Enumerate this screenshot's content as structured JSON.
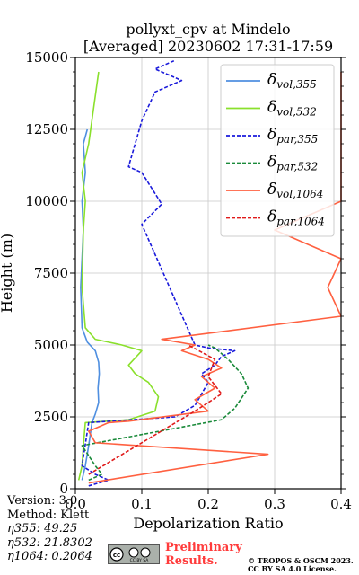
{
  "chart_data": {
    "type": "line",
    "title": "pollyxt_cpv at Mindelo",
    "subtitle": "[Averaged] 20230602 17:31-17:59",
    "xlabel": "Depolarization Ratio",
    "ylabel": "Height (m)",
    "xlim": [
      0.0,
      0.4
    ],
    "ylim": [
      0,
      15000
    ],
    "xticks": [
      "0.0",
      "0.1",
      "0.2",
      "0.3",
      "0.4"
    ],
    "yticks": [
      "0",
      "2500",
      "5000",
      "7500",
      "10000",
      "12500",
      "15000"
    ],
    "grid": true,
    "legend_position": "top-right",
    "series": [
      {
        "name": "δvol,355",
        "color": "#4f8fe0",
        "style": "solid",
        "x": [
          0.01,
          0.015,
          0.02,
          0.025,
          0.03,
          0.035,
          0.034,
          0.036,
          0.035,
          0.03,
          0.018,
          0.01,
          0.008,
          0.012,
          0.01,
          0.015,
          0.012,
          0.018
        ],
        "y": [
          300,
          800,
          1500,
          2300,
          2600,
          3000,
          3500,
          4000,
          4400,
          4800,
          5100,
          5600,
          7000,
          9000,
          10000,
          11000,
          12000,
          12500
        ]
      },
      {
        "name": "δvol,532",
        "color": "#8ae02c",
        "style": "solid",
        "x": [
          0.005,
          0.01,
          0.012,
          0.015,
          0.08,
          0.12,
          0.125,
          0.11,
          0.09,
          0.08,
          0.1,
          0.07,
          0.03,
          0.015,
          0.01,
          0.012,
          0.015,
          0.01,
          0.02,
          0.035
        ],
        "y": [
          300,
          800,
          1500,
          2300,
          2400,
          2700,
          3200,
          3700,
          4000,
          4300,
          4800,
          5000,
          5200,
          5600,
          7000,
          9000,
          10000,
          11000,
          12000,
          14500
        ]
      },
      {
        "name": "δpar,355",
        "color": "#1a1adb",
        "style": "dashed",
        "x": [
          0.02,
          0.05,
          0.03,
          0.01,
          0.02,
          0.15,
          0.18,
          0.19,
          0.2,
          0.19,
          0.21,
          0.22,
          0.24,
          0.2,
          0.18,
          0.1,
          0.13,
          0.1,
          0.08,
          0.1,
          0.12,
          0.16,
          0.12,
          0.15
        ],
        "y": [
          100,
          300,
          500,
          800,
          2300,
          2500,
          2900,
          3300,
          3700,
          4000,
          4300,
          4600,
          4800,
          4900,
          5000,
          9200,
          9900,
          11000,
          11200,
          12800,
          13800,
          14200,
          14600,
          14900
        ]
      },
      {
        "name": "δpar,532",
        "color": "#1a8a3a",
        "style": "dashed",
        "x": [
          0.02,
          0.04,
          0.03,
          0.01,
          0.22,
          0.24,
          0.26,
          0.25,
          0.23,
          0.21,
          0.2
        ],
        "y": [
          300,
          500,
          800,
          1500,
          2400,
          2800,
          3500,
          4000,
          4500,
          4900,
          5000
        ]
      },
      {
        "name": "δvol,1064",
        "color": "#ff6040",
        "style": "solid",
        "x": [
          0.02,
          0.29,
          0.03,
          0.02,
          0.04,
          0.05,
          0.08,
          0.2,
          0.18,
          0.21,
          0.19,
          0.22,
          0.2,
          0.16,
          0.18,
          0.13,
          0.4,
          0.38,
          0.4,
          0.3,
          0.4,
          0.4,
          0.4,
          0.4,
          0.4
        ],
        "y": [
          200,
          1200,
          1600,
          2000,
          2200,
          2300,
          2350,
          2700,
          3100,
          3500,
          3900,
          4200,
          4500,
          4800,
          5000,
          5200,
          6000,
          7000,
          8000,
          9000,
          10000,
          11000,
          12000,
          13000,
          14500
        ]
      },
      {
        "name": "δpar,1064",
        "color": "#e01a1a",
        "style": "dashed",
        "x": [
          0.02,
          0.18,
          0.22,
          0.2,
          0.21,
          0.17
        ],
        "y": [
          500,
          2700,
          3300,
          3900,
          4500,
          5000
        ]
      }
    ]
  },
  "footer": {
    "version": "Version: 3.0",
    "method": "Method: Klett",
    "eta355": "η355:  49.25",
    "eta532": "η532: 21.8302",
    "eta1064": "η1064: 0.2064",
    "cc_badge": "CC BY SA",
    "preliminary_line1": "Preliminary",
    "preliminary_line2": "Results.",
    "copyright_line1": "© TROPOS & OSCM 2023.",
    "copyright_line2": "CC BY SA 4.0 License."
  }
}
